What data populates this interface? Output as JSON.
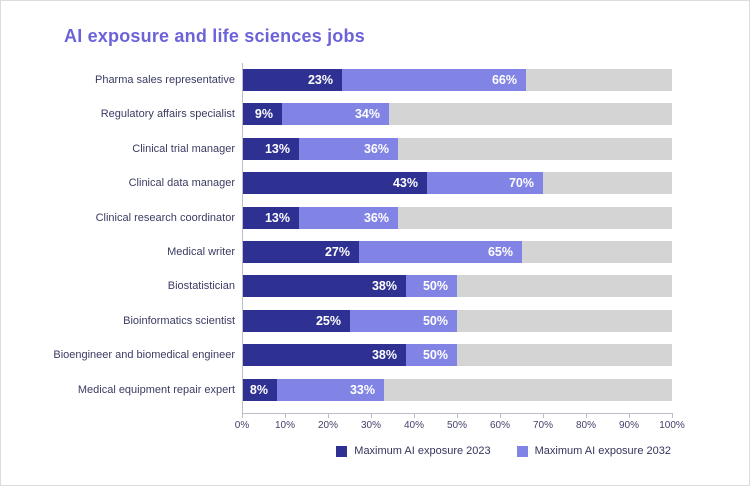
{
  "title": "AI exposure and life sciences jobs",
  "colors": {
    "title": "#6c63d9",
    "category_label": "#3a3b63",
    "tick_label": "#42436b",
    "legend_label": "#33345c",
    "axis": "#bcbdcb",
    "track": "#d4d4d4",
    "series_2023": "#2e3192",
    "series_2032": "#8184e4",
    "value_label": "#ffffff",
    "card_border": "#d9dce1",
    "background": "#ffffff"
  },
  "chart_data": {
    "type": "bar",
    "orientation": "horizontal",
    "stacked": true,
    "title": "AI exposure and life sciences jobs",
    "xlabel": "",
    "ylabel": "",
    "xlim": [
      0,
      100
    ],
    "x_ticks": [
      "0%",
      "10%",
      "20%",
      "30%",
      "40%",
      "50%",
      "60%",
      "70%",
      "80%",
      "90%",
      "100%"
    ],
    "grid": false,
    "legend_position": "bottom-right",
    "track_full_value": 100,
    "value_label_suffix": "%",
    "categories": [
      "Pharma sales representative",
      "Regulatory affairs specialist",
      "Clinical trial manager",
      "Clinical data manager",
      "Clinical research coordinator",
      "Medical writer",
      "Biostatistician",
      "Bioinformatics scientist",
      "Bioengineer and biomedical engineer",
      "Medical equipment repair expert"
    ],
    "series": [
      {
        "name": "Maximum AI exposure 2023",
        "color": "#2e3192",
        "values": [
          23,
          9,
          13,
          43,
          13,
          27,
          38,
          25,
          38,
          8
        ]
      },
      {
        "name": "Maximum AI exposure 2032",
        "color": "#8184e4",
        "values": [
          66,
          34,
          36,
          70,
          36,
          65,
          50,
          50,
          50,
          33
        ],
        "note_rendering": "values are cumulative totals; bar segment spans from 2023 value to 2032 value"
      }
    ]
  }
}
